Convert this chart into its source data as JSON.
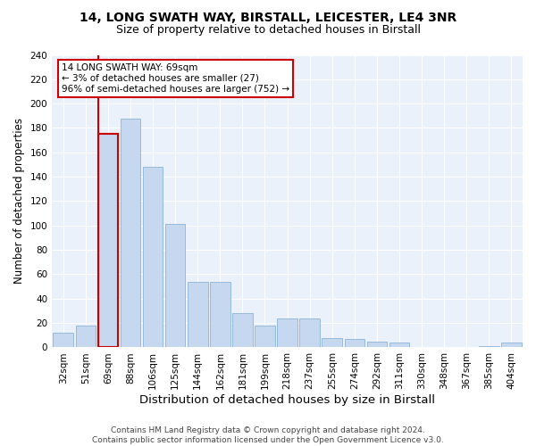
{
  "title1": "14, LONG SWATH WAY, BIRSTALL, LEICESTER, LE4 3NR",
  "title2": "Size of property relative to detached houses in Birstall",
  "xlabel": "Distribution of detached houses by size in Birstall",
  "ylabel": "Number of detached properties",
  "categories": [
    "32sqm",
    "51sqm",
    "69sqm",
    "88sqm",
    "106sqm",
    "125sqm",
    "144sqm",
    "162sqm",
    "181sqm",
    "199sqm",
    "218sqm",
    "237sqm",
    "255sqm",
    "274sqm",
    "292sqm",
    "311sqm",
    "330sqm",
    "348sqm",
    "367sqm",
    "385sqm",
    "404sqm"
  ],
  "values": [
    12,
    18,
    175,
    188,
    148,
    101,
    54,
    54,
    28,
    18,
    24,
    24,
    8,
    7,
    5,
    4,
    0,
    0,
    0,
    1,
    4
  ],
  "bar_color": "#c5d8f0",
  "bar_edge_color": "#8ab4d8",
  "highlight_bar_index": 2,
  "highlight_edge_color": "#cc0000",
  "vline_color": "#cc0000",
  "annotation_box_text": "14 LONG SWATH WAY: 69sqm\n← 3% of detached houses are smaller (27)\n96% of semi-detached houses are larger (752) →",
  "box_edge_color": "#cc0000",
  "ylim": [
    0,
    240
  ],
  "yticks": [
    0,
    20,
    40,
    60,
    80,
    100,
    120,
    140,
    160,
    180,
    200,
    220,
    240
  ],
  "footnote": "Contains HM Land Registry data © Crown copyright and database right 2024.\nContains public sector information licensed under the Open Government Licence v3.0.",
  "bg_color": "#eaf1fb",
  "title1_fontsize": 10,
  "title2_fontsize": 9,
  "xlabel_fontsize": 9.5,
  "ylabel_fontsize": 8.5,
  "tick_fontsize": 7.5,
  "annotation_fontsize": 7.5,
  "footnote_fontsize": 6.5
}
